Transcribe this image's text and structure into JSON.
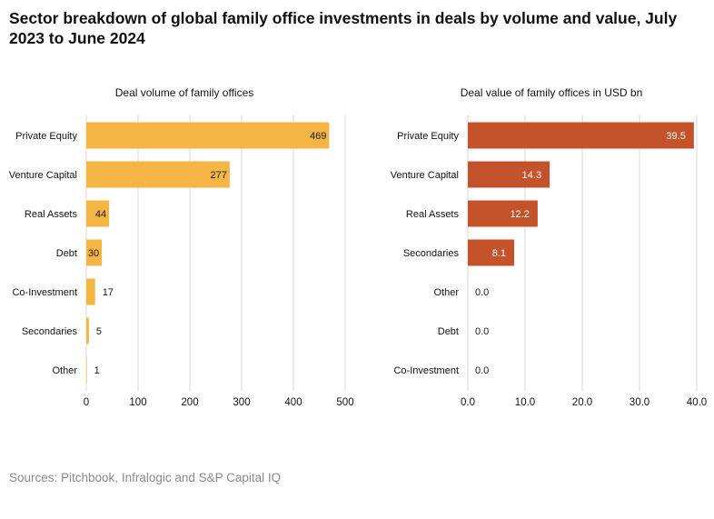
{
  "title": "Sector breakdown of global family office investments in deals by volume and value, July 2023 to June 2024",
  "sources": "Sources: Pitchbook, Infralogic and S&P Capital IQ",
  "chart_data": [
    {
      "type": "bar",
      "orientation": "horizontal",
      "title": "Deal volume of family offices",
      "categories": [
        "Private Equity",
        "Venture Capital",
        "Real Assets",
        "Debt",
        "Co-Investment",
        "Secondaries",
        "Other"
      ],
      "values": [
        469,
        277,
        44,
        30,
        17,
        5,
        1
      ],
      "data_labels": [
        "469",
        "277",
        "44",
        "30",
        "17",
        "5",
        "1"
      ],
      "xlim": [
        0,
        500
      ],
      "xticks": [
        0,
        100,
        200,
        300,
        400,
        500
      ],
      "xtick_labels": [
        "0",
        "100",
        "200",
        "300",
        "400",
        "500"
      ],
      "grid": true,
      "color": "#F5B544",
      "label_color": "#1a1a1a"
    },
    {
      "type": "bar",
      "orientation": "horizontal",
      "title": "Deal value of family offices in USD bn",
      "categories": [
        "Private Equity",
        "Venture Capital",
        "Real Assets",
        "Secondaries",
        "Other",
        "Debt",
        "Co-Investment"
      ],
      "values": [
        39.5,
        14.3,
        12.2,
        8.1,
        0.0,
        0.0,
        0.0
      ],
      "data_labels": [
        "39.5",
        "14.3",
        "12.2",
        "8.1",
        "0.0",
        "0.0",
        "0.0"
      ],
      "xlim": [
        0,
        40
      ],
      "xticks": [
        0,
        10,
        20,
        30,
        40
      ],
      "xtick_labels": [
        "0.0",
        "10.0",
        "20.0",
        "30.0",
        "40.0"
      ],
      "grid": true,
      "color": "#C4532B",
      "label_color": "#ffffff"
    }
  ]
}
